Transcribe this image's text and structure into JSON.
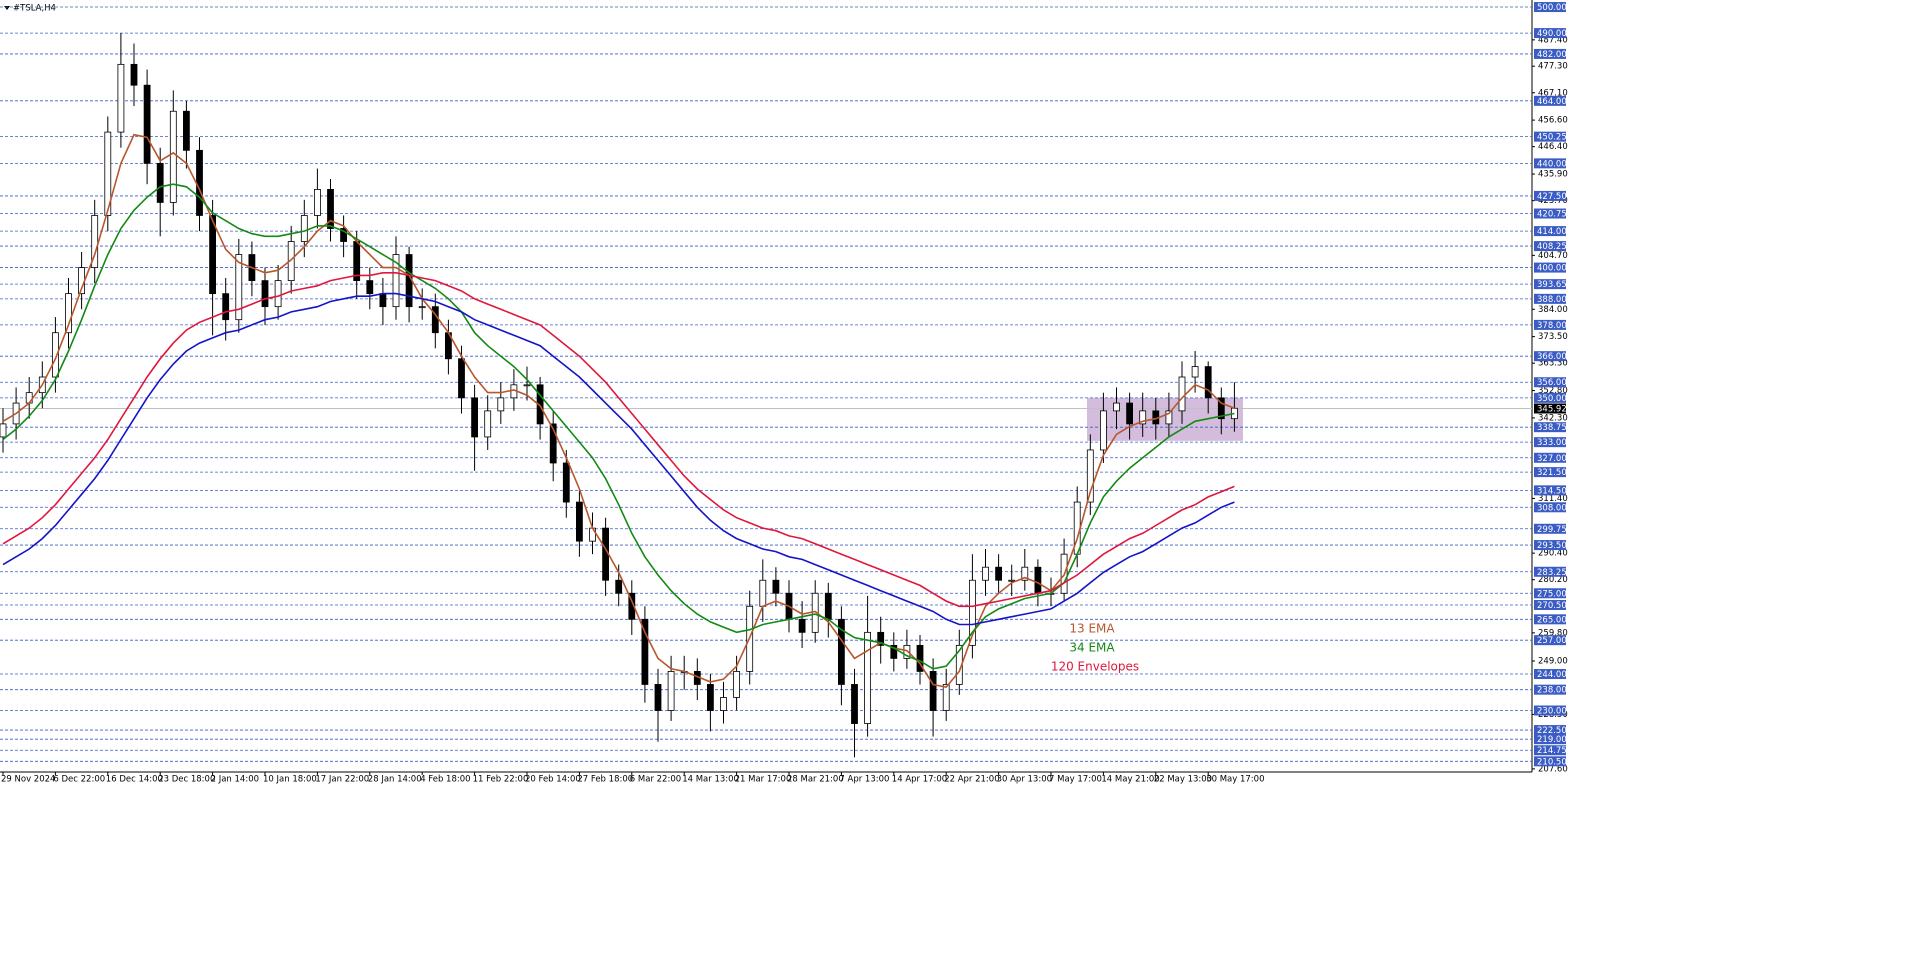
{
  "chart_data": {
    "type": "candlestick",
    "title": "#TSLA,H4",
    "categories": [
      "29 Nov 2024",
      null,
      null,
      null,
      "6 Dec 22:00",
      null,
      null,
      null,
      "16 Dec 14:00",
      null,
      null,
      null,
      "23 Dec 18:00",
      null,
      null,
      null,
      "2 Jan 14:00",
      null,
      null,
      null,
      "10 Jan 18:00",
      null,
      null,
      null,
      "17 Jan 22:00",
      null,
      null,
      null,
      "28 Jan 14:00",
      null,
      null,
      null,
      "4 Feb 18:00",
      null,
      null,
      null,
      "11 Feb 22:00",
      null,
      null,
      null,
      "20 Feb 14:00",
      null,
      null,
      null,
      "27 Feb 18:00",
      null,
      null,
      null,
      "6 Mar 22:00",
      null,
      null,
      null,
      "14 Mar 13:00",
      null,
      null,
      null,
      "21 Mar 17:00",
      null,
      null,
      null,
      "28 Mar 21:00",
      null,
      null,
      null,
      "7 Apr 13:00",
      null,
      null,
      null,
      "14 Apr 17:00",
      null,
      null,
      null,
      "22 Apr 21:00",
      null,
      null,
      null,
      "30 Apr 13:00",
      null,
      null,
      null,
      "7 May 17:00",
      null,
      null,
      null,
      "14 May 21:00",
      null,
      null,
      null,
      "22 May 13:00",
      null,
      null,
      null,
      "30 May 17:00",
      null,
      null
    ],
    "open": [
      335,
      340,
      348,
      352,
      358,
      375,
      390,
      400,
      420,
      452,
      478,
      470,
      440,
      425,
      460,
      445,
      420,
      390,
      380,
      405,
      395,
      385,
      395,
      410,
      420,
      430,
      415,
      410,
      395,
      390,
      385,
      405,
      385,
      385,
      375,
      365,
      350,
      335,
      345,
      350,
      355,
      355,
      340,
      325,
      310,
      295,
      300,
      280,
      275,
      265,
      240,
      230,
      245,
      245,
      240,
      230,
      235,
      245,
      270,
      280,
      275,
      265,
      260,
      275,
      265,
      240,
      225,
      260,
      255,
      250,
      255,
      245,
      230,
      240,
      255,
      280,
      285,
      280,
      280,
      285,
      275,
      275,
      290,
      310,
      330,
      345,
      348,
      340,
      345,
      340,
      345,
      358,
      362,
      350,
      342
    ],
    "high": [
      346,
      354,
      358,
      364,
      381,
      396,
      406,
      426,
      458,
      490,
      486,
      476,
      446,
      468,
      464,
      450,
      426,
      396,
      411,
      410,
      400,
      401,
      416,
      426,
      438,
      434,
      420,
      414,
      400,
      396,
      412,
      408,
      392,
      390,
      380,
      370,
      355,
      351,
      356,
      361,
      362,
      358,
      345,
      330,
      315,
      306,
      304,
      286,
      280,
      270,
      246,
      251,
      251,
      250,
      244,
      241,
      251,
      276,
      288,
      285,
      280,
      272,
      280,
      279,
      270,
      246,
      274,
      266,
      260,
      261,
      259,
      250,
      246,
      261,
      290,
      292,
      290,
      286,
      292,
      288,
      281,
      296,
      316,
      336,
      352,
      354,
      352,
      352,
      350,
      352,
      364,
      368,
      364,
      354,
      356
    ],
    "low": [
      329,
      334,
      342,
      346,
      352,
      369,
      384,
      394,
      414,
      446,
      462,
      432,
      412,
      420,
      438,
      414,
      374,
      372,
      375,
      389,
      378,
      380,
      390,
      404,
      415,
      410,
      404,
      388,
      384,
      378,
      380,
      379,
      380,
      369,
      359,
      344,
      322,
      330,
      340,
      345,
      349,
      334,
      318,
      304,
      289,
      290,
      274,
      270,
      259,
      233,
      218,
      226,
      238,
      234,
      222,
      225,
      230,
      240,
      264,
      270,
      260,
      254,
      256,
      258,
      232,
      212,
      220,
      248,
      245,
      246,
      240,
      220,
      226,
      236,
      250,
      274,
      275,
      274,
      276,
      270,
      270,
      272,
      285,
      305,
      325,
      338,
      334,
      335,
      334,
      335,
      340,
      352,
      344,
      336,
      337
    ],
    "close": [
      340,
      348,
      352,
      358,
      375,
      390,
      400,
      420,
      452,
      478,
      470,
      440,
      425,
      460,
      445,
      420,
      390,
      380,
      405,
      395,
      385,
      395,
      410,
      420,
      430,
      415,
      410,
      395,
      390,
      385,
      405,
      385,
      385,
      375,
      365,
      350,
      335,
      345,
      350,
      355,
      355,
      340,
      325,
      310,
      295,
      300,
      280,
      275,
      265,
      240,
      230,
      245,
      245,
      240,
      230,
      235,
      245,
      270,
      280,
      275,
      265,
      260,
      275,
      265,
      240,
      225,
      260,
      255,
      250,
      255,
      245,
      230,
      240,
      255,
      280,
      285,
      280,
      280,
      285,
      275,
      275,
      290,
      310,
      330,
      345,
      348,
      340,
      345,
      340,
      345,
      358,
      362,
      350,
      342,
      346
    ],
    "series": [
      {
        "name": "13 EMA",
        "color": "#b8562c",
        "values": [
          341,
          344,
          348,
          355,
          365,
          378,
          392,
          405,
          422,
          440,
          451,
          450,
          441,
          444,
          440,
          430,
          418,
          407,
          402,
          400,
          398,
          399,
          403,
          408,
          414,
          418,
          416,
          410,
          405,
          400,
          400,
          397,
          388,
          382,
          375,
          366,
          358,
          352,
          352,
          353,
          351,
          347,
          338,
          327,
          315,
          300,
          292,
          283,
          272,
          260,
          250,
          246,
          245,
          243,
          241,
          242,
          247,
          258,
          270,
          272,
          270,
          267,
          268,
          264,
          257,
          250,
          253,
          256,
          254,
          253,
          248,
          240,
          239,
          245,
          259,
          270,
          275,
          279,
          281,
          279,
          276,
          282,
          296,
          314,
          328,
          336,
          339,
          341,
          342,
          344,
          350,
          355,
          353,
          348,
          346
        ]
      },
      {
        "name": "34 EMA",
        "color": "#138a13",
        "values": [
          334,
          338,
          343,
          349,
          357,
          368,
          380,
          393,
          405,
          415,
          422,
          427,
          431,
          432,
          431,
          427,
          421,
          418,
          415,
          413,
          412,
          412,
          413,
          414,
          416,
          416,
          414,
          411,
          408,
          405,
          402,
          398,
          395,
          392,
          388,
          383,
          375,
          370,
          366,
          362,
          357,
          351,
          345,
          339,
          333,
          327,
          319,
          309,
          298,
          289,
          282,
          276,
          271,
          267,
          264,
          262,
          260,
          261,
          263,
          264,
          265,
          266,
          267,
          265,
          261,
          258,
          257,
          256,
          254,
          251,
          249,
          246,
          247,
          253,
          260,
          266,
          269,
          271,
          273,
          274,
          275,
          279,
          290,
          302,
          312,
          318,
          323,
          327,
          331,
          335,
          338,
          341,
          342,
          343,
          344
        ]
      },
      {
        "name": "120 Envelopes",
        "color": "#e0173c",
        "values": [
          294,
          297,
          300,
          304,
          309,
          315,
          321,
          327,
          334,
          342,
          350,
          358,
          365,
          371,
          376,
          379,
          381,
          383,
          384,
          386,
          388,
          389,
          391,
          392,
          393,
          395,
          396,
          397,
          397,
          398,
          398,
          397,
          396,
          395,
          393,
          391,
          388,
          386,
          384,
          382,
          380,
          378,
          374,
          370,
          366,
          361,
          356,
          350,
          344,
          338,
          332,
          326,
          320,
          315,
          311,
          307,
          304,
          302,
          300,
          299,
          297,
          296,
          294,
          292,
          290,
          288,
          286,
          284,
          282,
          280,
          278,
          275,
          272,
          270,
          270,
          271,
          272,
          273,
          274,
          275,
          276,
          279,
          282,
          286,
          290,
          293,
          296,
          298,
          301,
          304,
          307,
          309,
          312,
          314,
          316
        ]
      },
      {
        "color": "#1414c8",
        "values": [
          286,
          289,
          292,
          296,
          301,
          307,
          313,
          319,
          326,
          334,
          342,
          350,
          357,
          363,
          368,
          371,
          373,
          375,
          376,
          378,
          380,
          381,
          383,
          384,
          385,
          387,
          388,
          389,
          389,
          390,
          390,
          389,
          388,
          387,
          385,
          383,
          380,
          378,
          376,
          374,
          372,
          370,
          366,
          362,
          358,
          353,
          348,
          343,
          338,
          332,
          326,
          320,
          314,
          308,
          303,
          299,
          296,
          294,
          292,
          291,
          289,
          288,
          286,
          284,
          282,
          280,
          278,
          276,
          274,
          272,
          270,
          268,
          265,
          263,
          263,
          264,
          265,
          266,
          267,
          268,
          269,
          272,
          275,
          279,
          283,
          286,
          289,
          291,
          294,
          297,
          300,
          302,
          305,
          308,
          310
        ]
      }
    ],
    "ylim": [
      206.4,
      502.7
    ],
    "yticks": [
      {
        "value": 487.4,
        "label": "487.40"
      },
      {
        "value": 477.3,
        "label": "477.30"
      },
      {
        "value": 467.1,
        "label": "467.10"
      },
      {
        "value": 456.6,
        "label": "456.60"
      },
      {
        "value": 446.4,
        "label": "446.40"
      },
      {
        "value": 435.9,
        "label": "435.90"
      },
      {
        "value": 425.7,
        "label": "425.70"
      },
      {
        "value": 404.7,
        "label": "404.70"
      },
      {
        "value": 384,
        "label": "384.00"
      },
      {
        "value": 373.5,
        "label": "373.50"
      },
      {
        "value": 363.3,
        "label": "363.30"
      },
      {
        "value": 352.8,
        "label": "352.80"
      },
      {
        "value": 342.3,
        "label": "342.30"
      },
      {
        "value": 311.4,
        "label": "311.40"
      },
      {
        "value": 290.4,
        "label": "290.40"
      },
      {
        "value": 280.2,
        "label": "280.20"
      },
      {
        "value": 259.8,
        "label": "259.80"
      },
      {
        "value": 249,
        "label": "249.00"
      },
      {
        "value": 228.5,
        "label": "228.50"
      },
      {
        "value": 207.6,
        "label": "207.60"
      }
    ],
    "levels": [
      {
        "value": 500,
        "label": "500.00"
      },
      {
        "value": 490,
        "label": "490.00"
      },
      {
        "value": 482,
        "label": "482.00"
      },
      {
        "value": 464,
        "label": "464.00"
      },
      {
        "value": 450.25,
        "label": "450.25"
      },
      {
        "value": 440,
        "label": "440.00"
      },
      {
        "value": 427.5,
        "label": "427.50"
      },
      {
        "value": 420.75,
        "label": "420.75"
      },
      {
        "value": 414,
        "label": "414.00"
      },
      {
        "value": 408.25,
        "label": "408.25"
      },
      {
        "value": 400,
        "label": "400.00"
      },
      {
        "value": 393.65,
        "label": "393.65"
      },
      {
        "value": 388,
        "label": "388.00"
      },
      {
        "value": 378,
        "label": "378.00"
      },
      {
        "value": 366,
        "label": "366.00"
      },
      {
        "value": 356,
        "label": "356.00"
      },
      {
        "value": 350,
        "label": "350.00"
      },
      {
        "value": 338.75,
        "label": "338.75"
      },
      {
        "value": 333,
        "label": "333.00"
      },
      {
        "value": 327,
        "label": "327.00"
      },
      {
        "value": 321.5,
        "label": "321.50"
      },
      {
        "value": 314.5,
        "label": "314.50"
      },
      {
        "value": 308,
        "label": "308.00"
      },
      {
        "value": 299.75,
        "label": "299.75"
      },
      {
        "value": 293.5,
        "label": "293.50"
      },
      {
        "value": 283.25,
        "label": "283.25"
      },
      {
        "value": 275,
        "label": "275.00"
      },
      {
        "value": 270.5,
        "label": "270.50"
      },
      {
        "value": 265,
        "label": "265.00"
      },
      {
        "value": 257,
        "label": "257.00"
      },
      {
        "value": 244,
        "label": "244.00"
      },
      {
        "value": 238,
        "label": "238.00"
      },
      {
        "value": 230,
        "label": "230.00"
      },
      {
        "value": 222.5,
        "label": "222.50"
      },
      {
        "value": 219,
        "label": "219.00"
      },
      {
        "value": 214.75,
        "label": "214.75"
      },
      {
        "value": 210.5,
        "label": "210.50"
      }
    ],
    "level_color": "#3a5cc4",
    "last": {
      "value": 345.92,
      "label": "345.92"
    },
    "range_box": {
      "low": 333.5,
      "high": 350,
      "color": "#b58fc4"
    },
    "grid": true
  }
}
